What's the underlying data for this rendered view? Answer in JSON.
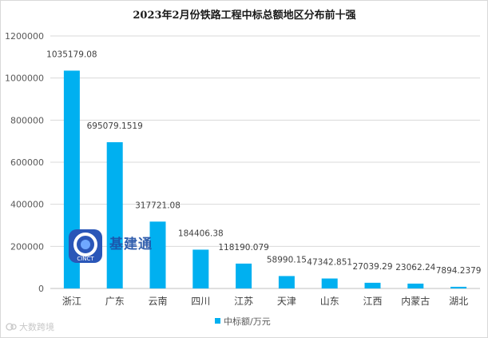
{
  "chart_data": {
    "type": "bar",
    "title": "2023年2月份铁路工程中标总额地区分布前十强",
    "categories": [
      "浙江",
      "广东",
      "云南",
      "四川",
      "江苏",
      "天津",
      "山东",
      "江西",
      "内蒙古",
      "湖北"
    ],
    "series": [
      {
        "name": "中标额/万元",
        "values": [
          1035179.08,
          695079.1519,
          317721.08,
          184406.38,
          118190.079,
          58990.15,
          47342.851,
          27039.29,
          23062.24,
          7894.2379
        ],
        "labels": [
          "1035179.08",
          "695079.1519",
          "317721.08",
          "184406.38",
          "118190.079",
          "58990.15",
          "47342.851",
          "27039.29",
          "23062.24",
          "7894.2379"
        ],
        "color": "#00b0f0"
      }
    ],
    "yticks": [
      "0",
      "200000",
      "400000",
      "600000",
      "800000",
      "1000000",
      "1200000"
    ],
    "ylim": [
      0,
      1200000
    ],
    "grid": true,
    "legend_position": "bottom"
  },
  "watermark": {
    "text": "基建通",
    "logo_text": "CINCT"
  },
  "corner_mark": {
    "text": "大数跨境"
  }
}
